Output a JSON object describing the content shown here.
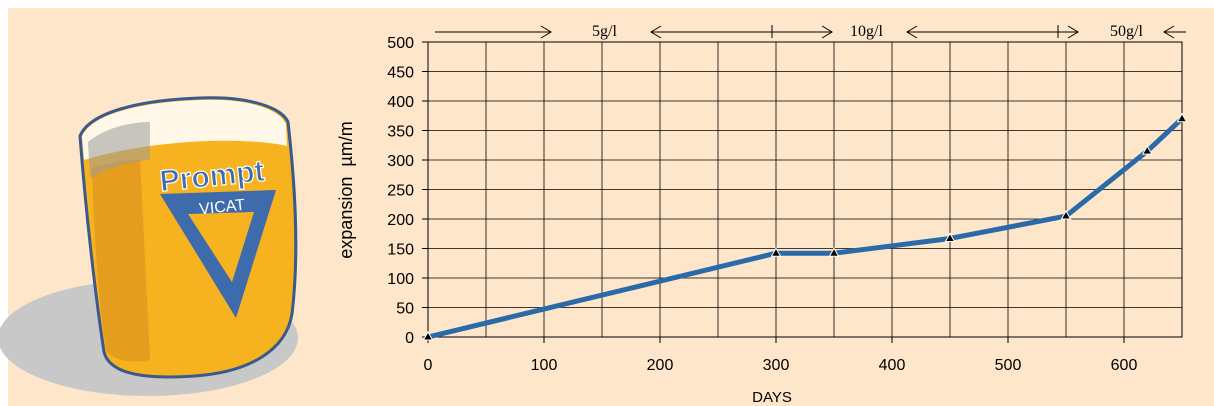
{
  "logo": {
    "brand_top": "Prompt",
    "brand_bottom": "VICAT",
    "colors": {
      "cup_fill": "#f7b21f",
      "cup_outline": "#3a5a8c",
      "triangle": "#3d6bab",
      "shadow": "#c9c9c9"
    }
  },
  "chart_data": {
    "type": "line",
    "xlabel": "DAYS",
    "ylabel": "expansion  µm/m",
    "xlim": [
      0,
      650
    ],
    "ylim": [
      0,
      500
    ],
    "x_ticks": [
      "0",
      "100",
      "200",
      "300",
      "400",
      "500",
      "600"
    ],
    "y_ticks": [
      "0",
      "50",
      "100",
      "150",
      "200",
      "250",
      "300",
      "350",
      "400",
      "450",
      "500"
    ],
    "grid": true,
    "series": [
      {
        "color": "#2b6aa8",
        "points": [
          [
            0,
            0
          ],
          [
            300,
            142
          ],
          [
            350,
            142
          ],
          [
            450,
            167
          ],
          [
            550,
            205
          ],
          [
            620,
            315
          ],
          [
            650,
            370
          ]
        ]
      }
    ],
    "annotations": [
      {
        "text": "5g/l"
      },
      {
        "text": "10g/l"
      },
      {
        "text": "50g/l"
      }
    ]
  }
}
